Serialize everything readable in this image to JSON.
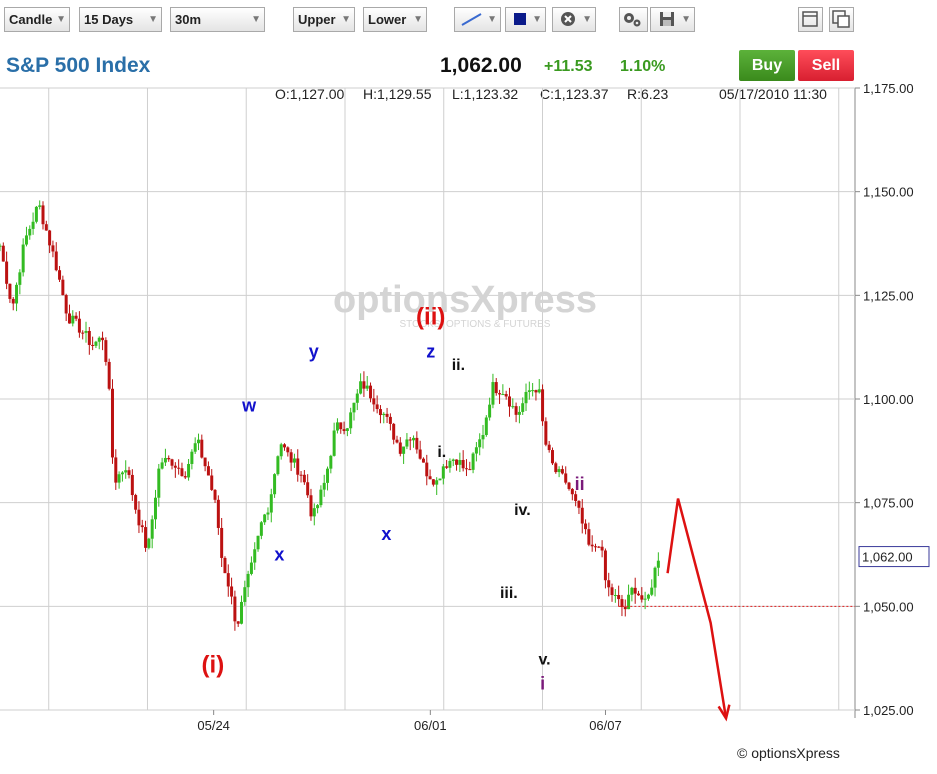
{
  "toolbar": {
    "chart_type": "Candle",
    "period": "15 Days",
    "interval": "30m",
    "upper": "Upper",
    "lower": "Lower",
    "icons": [
      "line-tool-icon",
      "color-square-icon",
      "close-icon",
      "settings-icon",
      "save-icon",
      "window-icon",
      "popout-icon"
    ]
  },
  "header": {
    "title": "S&P 500 Index",
    "price": "1,062.00",
    "change": "+11.53",
    "change_pct": "1.10%",
    "buy_label": "Buy",
    "sell_label": "Sell",
    "open": "O:1,127.00",
    "high": "H:1,129.55",
    "low": "L:1,123.32",
    "close": "C:1,123.37",
    "range": "R:6.23",
    "datetime": "05/17/2010 11:30"
  },
  "watermark": {
    "brand": "optionsXpress",
    "tagline": "STOCKS, OPTIONS & FUTURES"
  },
  "copyright": "© optionsXpress",
  "colors": {
    "up": "#33bb22",
    "down": "#bb1111",
    "grid": "#cfcfcf",
    "title": "#2a6fa8",
    "buy": "#4a9a2a",
    "sell": "#e02a3a",
    "wave_major": "#dd1111",
    "wave_corrective": "#1111cc",
    "wave_minor": "#111111",
    "wave_minute": "#7a1a7a"
  },
  "chart_data": {
    "type": "candlestick",
    "title": "S&P 500 Index",
    "interval": "30m",
    "ylim": [
      1025,
      1175
    ],
    "yticks": [
      "1,025.00",
      "1,050.00",
      "1,075.00",
      "1,100.00",
      "1,125.00",
      "1,150.00",
      "1,175.00"
    ],
    "ytick_values": [
      1025,
      1050,
      1075,
      1100,
      1125,
      1150,
      1175
    ],
    "xticks": [
      "05/24",
      "06/01",
      "06/07"
    ],
    "xtick_positions": [
      0.283,
      0.57,
      0.802
    ],
    "current_price_label": "1,062.00",
    "current_price": 1062,
    "reference_line": 1050,
    "path": [
      [
        0.0,
        1137
      ],
      [
        0.02,
        1122
      ],
      [
        0.04,
        1138
      ],
      [
        0.063,
        1147
      ],
      [
        0.09,
        1133
      ],
      [
        0.11,
        1120
      ],
      [
        0.13,
        1117
      ],
      [
        0.15,
        1113
      ],
      [
        0.168,
        1115
      ],
      [
        0.176,
        1105
      ],
      [
        0.185,
        1080
      ],
      [
        0.205,
        1084
      ],
      [
        0.22,
        1074
      ],
      [
        0.24,
        1063
      ],
      [
        0.26,
        1085
      ],
      [
        0.28,
        1085
      ],
      [
        0.3,
        1082
      ],
      [
        0.32,
        1090
      ],
      [
        0.34,
        1081
      ],
      [
        0.352,
        1073
      ],
      [
        0.36,
        1062
      ],
      [
        0.372,
        1055
      ],
      [
        0.385,
        1045
      ],
      [
        0.395,
        1052
      ],
      [
        0.41,
        1060
      ],
      [
        0.425,
        1070
      ],
      [
        0.438,
        1075
      ],
      [
        0.455,
        1090
      ],
      [
        0.465,
        1087
      ],
      [
        0.48,
        1084
      ],
      [
        0.49,
        1082
      ],
      [
        0.5,
        1077
      ],
      [
        0.508,
        1071
      ],
      [
        0.515,
        1074
      ],
      [
        0.528,
        1080
      ],
      [
        0.545,
        1093
      ],
      [
        0.565,
        1094
      ],
      [
        0.588,
        1104
      ],
      [
        0.608,
        1100
      ],
      [
        0.625,
        1096
      ],
      [
        0.65,
        1088
      ],
      [
        0.67,
        1092
      ],
      [
        0.69,
        1083
      ],
      [
        0.71,
        1080
      ],
      [
        0.72,
        1084
      ],
      [
        0.74,
        1086
      ],
      [
        0.76,
        1082
      ],
      [
        0.785,
        1092
      ],
      [
        0.8,
        1103
      ],
      [
        0.82,
        1102
      ],
      [
        0.84,
        1096
      ],
      [
        0.86,
        1102
      ],
      [
        0.875,
        1103
      ],
      [
        0.885,
        1090
      ],
      [
        0.9,
        1083
      ],
      [
        0.92,
        1080
      ],
      [
        0.94,
        1073
      ],
      [
        0.96,
        1063
      ],
      [
        0.975,
        1066
      ],
      [
        0.985,
        1055
      ],
      [
        1.0,
        1052
      ],
      [
        1.015,
        1049
      ],
      [
        1.03,
        1055
      ],
      [
        1.05,
        1050
      ],
      [
        1.07,
        1062
      ]
    ],
    "projection": [
      [
        1.085,
        1058
      ],
      [
        1.102,
        1076
      ],
      [
        1.155,
        1046
      ],
      [
        1.18,
        1023
      ]
    ],
    "wave_labels": [
      {
        "text": "(i)",
        "t": 0.346,
        "y": 1034,
        "color": "wave_major",
        "size": 24
      },
      {
        "text": "(ii)",
        "t": 0.7,
        "y": 1118,
        "color": "wave_major",
        "size": 24
      },
      {
        "text": "w",
        "t": 0.405,
        "y": 1097,
        "color": "wave_corrective",
        "size": 18
      },
      {
        "text": "x",
        "t": 0.454,
        "y": 1061,
        "color": "wave_corrective",
        "size": 18
      },
      {
        "text": "y",
        "t": 0.51,
        "y": 1110,
        "color": "wave_corrective",
        "size": 18
      },
      {
        "text": "x",
        "t": 0.628,
        "y": 1066,
        "color": "wave_corrective",
        "size": 18
      },
      {
        "text": "z",
        "t": 0.7,
        "y": 1110,
        "color": "wave_corrective",
        "size": 18
      },
      {
        "text": "ii.",
        "t": 0.745,
        "y": 1107,
        "color": "wave_minor",
        "size": 16
      },
      {
        "text": "i.",
        "t": 0.718,
        "y": 1086,
        "color": "wave_minor",
        "size": 16
      },
      {
        "text": "iv.",
        "t": 0.849,
        "y": 1072,
        "color": "wave_minor",
        "size": 16
      },
      {
        "text": "iii.",
        "t": 0.827,
        "y": 1052,
        "color": "wave_minor",
        "size": 16
      },
      {
        "text": "v.",
        "t": 0.885,
        "y": 1036,
        "color": "wave_minor",
        "size": 16
      },
      {
        "text": "i",
        "t": 0.882,
        "y": 1030,
        "color": "wave_minute",
        "size": 18
      },
      {
        "text": "ii",
        "t": 0.942,
        "y": 1078,
        "color": "wave_minute",
        "size": 18
      }
    ]
  }
}
